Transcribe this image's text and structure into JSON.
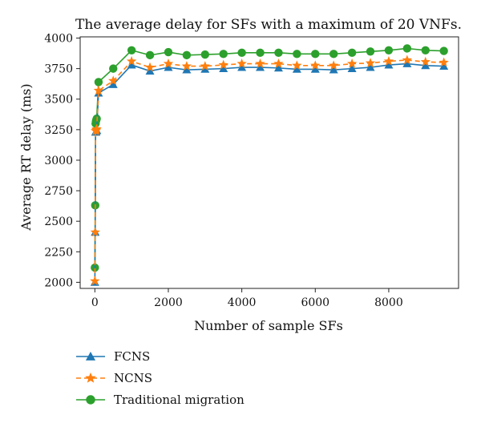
{
  "chart_data": {
    "type": "line",
    "title": "The average delay for SFs with a maximum of 20 VNFs.",
    "xlabel": "Number of sample SFs",
    "ylabel": "Average RT delay (ms)",
    "xlim": [
      -400,
      9900
    ],
    "ylim": [
      1950,
      4010
    ],
    "xticks": [
      0,
      2000,
      4000,
      6000,
      8000
    ],
    "yticks": [
      2000,
      2250,
      2500,
      2750,
      3000,
      3250,
      3500,
      3750,
      4000
    ],
    "grid": false,
    "legend_position": "below-left",
    "x": [
      0,
      10,
      20,
      30,
      40,
      50,
      100,
      500,
      1000,
      1500,
      2000,
      2500,
      3000,
      3500,
      4000,
      4500,
      5000,
      5500,
      6000,
      6500,
      7000,
      7500,
      8000,
      8500,
      9000,
      9500
    ],
    "series": [
      {
        "name": "FCNS",
        "color": "#1f77b4",
        "marker": "triangle",
        "line_style": "solid",
        "values": [
          2000,
          2410,
          3230,
          3230,
          3240,
          3245,
          3550,
          3620,
          3780,
          3730,
          3760,
          3740,
          3745,
          3750,
          3760,
          3760,
          3755,
          3745,
          3745,
          3740,
          3750,
          3760,
          3780,
          3790,
          3775,
          3770
        ]
      },
      {
        "name": "NCNS",
        "color": "#ff7f0e",
        "marker": "star",
        "line_style": "dashed",
        "values": [
          2010,
          2410,
          3240,
          3240,
          3250,
          3255,
          3570,
          3650,
          3810,
          3760,
          3790,
          3770,
          3770,
          3780,
          3790,
          3790,
          3790,
          3775,
          3775,
          3775,
          3790,
          3795,
          3810,
          3820,
          3805,
          3800
        ]
      },
      {
        "name": "Traditional migration",
        "color": "#2ca02c",
        "marker": "circle",
        "line_style": "solid",
        "values": [
          2120,
          2630,
          3300,
          3320,
          3330,
          3340,
          3640,
          3750,
          3900,
          3860,
          3885,
          3860,
          3865,
          3870,
          3880,
          3880,
          3880,
          3870,
          3870,
          3870,
          3880,
          3890,
          3900,
          3915,
          3900,
          3895
        ]
      }
    ]
  }
}
